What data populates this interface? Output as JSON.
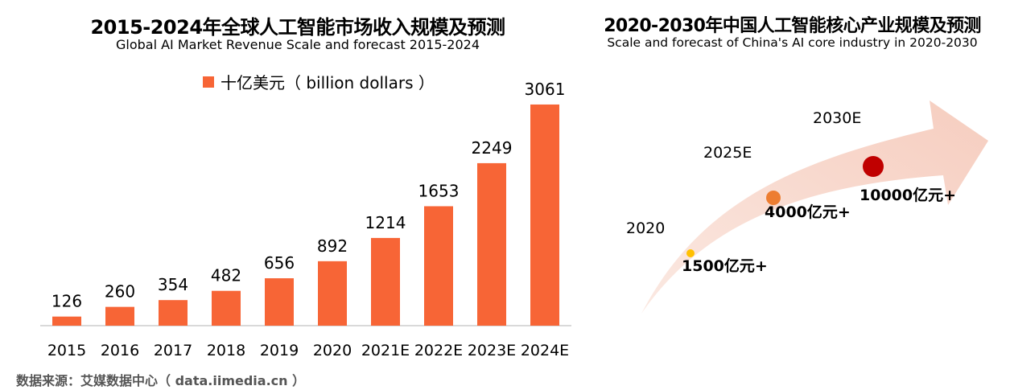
{
  "chart_data": [
    {
      "type": "bar",
      "title": "2015-2024年全球人工智能市场收入规模及预测",
      "subtitle": "Global AI Market Revenue Scale and forecast 2015-2024",
      "legend": "十亿美元（ billion dollars ）",
      "categories": [
        "2015",
        "2016",
        "2017",
        "2018",
        "2019",
        "2020",
        "2021E",
        "2022E",
        "2023E",
        "2024E"
      ],
      "values": [
        126,
        260,
        354,
        482,
        656,
        892,
        1214,
        1653,
        2249,
        3061
      ],
      "ylim": [
        0,
        3450
      ],
      "grid": false,
      "color": "#f76536"
    },
    {
      "type": "scatter",
      "title": "2020-2030年中国人工智能核心产业规模及预测",
      "subtitle": "Scale and forecast of China's AI core industry in 2020-2030",
      "points": [
        {
          "year": "2020",
          "label": "1500亿元+",
          "value": 1500,
          "color": "#ffc000"
        },
        {
          "year": "2025E",
          "label": "4000亿元+",
          "value": 4000,
          "color": "#ed7d31"
        },
        {
          "year": "2030E",
          "label": "10000亿元+",
          "value": 10000,
          "color": "#c00000"
        }
      ]
    }
  ],
  "source": "数据来源：艾媒数据中心（ data.iimedia.cn ）"
}
